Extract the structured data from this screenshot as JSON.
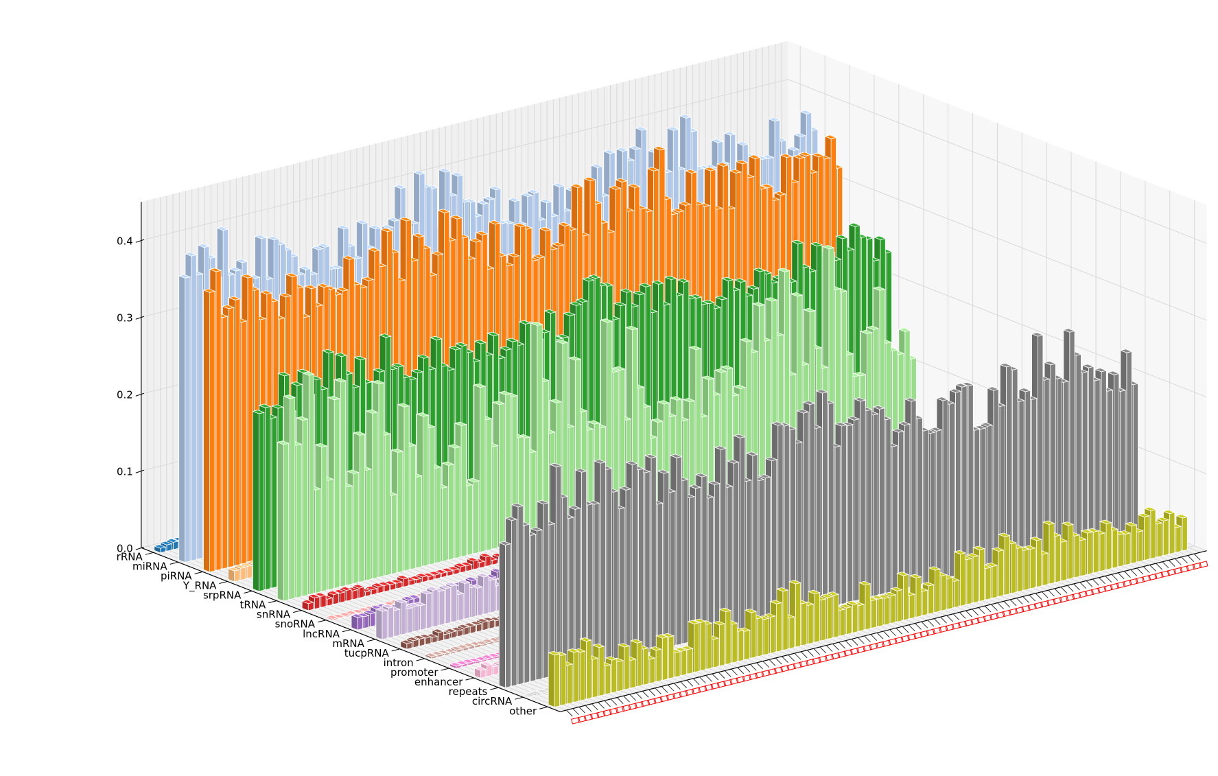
{
  "chart_data": {
    "type": "bar",
    "projection": "3d",
    "title": "",
    "xlabel": "",
    "ylabel": "",
    "zlabel": "",
    "zlim": [
      0,
      0.45
    ],
    "z_ticks": [
      "0.0",
      "0.1",
      "0.2",
      "0.3",
      "0.4"
    ],
    "grid": true,
    "legend": "none",
    "sample_count": 100,
    "sample_tick_color": "#ff0000",
    "categories": [
      "rRNA",
      "miRNA",
      "piRNA",
      "Y_RNA",
      "srpRNA",
      "tRNA",
      "snRNA",
      "snoRNA",
      "lncRNA",
      "mRNA",
      "tucpRNA",
      "intron",
      "promoter",
      "enhancer",
      "repeats",
      "circRNA",
      "other"
    ],
    "category_colors": [
      "#1f77b4",
      "#aec7e8",
      "#ff7f0e",
      "#ffbb78",
      "#2ca02c",
      "#98df8a",
      "#d62728",
      "#ff9896",
      "#9467bd",
      "#c5b0d5",
      "#8c564b",
      "#c49c94",
      "#e377c2",
      "#f7b6d2",
      "#7f7f7f",
      "#c7c7c7",
      "#bcbd22"
    ],
    "series_peaks": [
      0.018,
      0.43,
      0.41,
      0.02,
      0.3,
      0.3,
      0.016,
      0.002,
      0.03,
      0.05,
      0.012,
      0.004,
      0.004,
      0.02,
      0.29,
      0.002,
      0.085
    ],
    "series_means": [
      0.004,
      0.33,
      0.3,
      0.012,
      0.22,
      0.09,
      0.005,
      0.001,
      0.015,
      0.03,
      0.005,
      0.002,
      0.002,
      0.01,
      0.18,
      0.001,
      0.03
    ]
  }
}
